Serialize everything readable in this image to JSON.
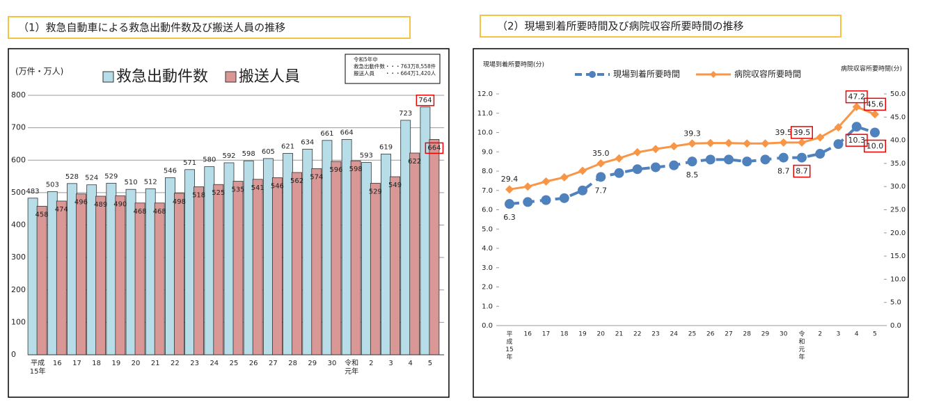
{
  "chart_data": [
    {
      "type": "bar",
      "title": "（1）救急自動車による救急出動件数及び搬送人員の推移",
      "y_label": "(万件・万人)",
      "annotation": [
        "令和5年中",
        "救急出動件数・・・763万8,558件",
        "搬送人員　　・・・664万1,420人"
      ],
      "categories": [
        "平成15年",
        "16",
        "17",
        "18",
        "19",
        "20",
        "21",
        "22",
        "23",
        "24",
        "25",
        "26",
        "27",
        "28",
        "29",
        "30",
        "令和元年",
        "2",
        "3",
        "4",
        "5"
      ],
      "series": [
        {
          "name": "救急出動件数",
          "color": "#b7dee8",
          "values": [
            483,
            503,
            528,
            524,
            529,
            510,
            512,
            546,
            571,
            580,
            592,
            598,
            605,
            621,
            634,
            661,
            664,
            593,
            619,
            723,
            764
          ]
        },
        {
          "name": "搬送人員",
          "color": "#d99795",
          "values": [
            458,
            474,
            496,
            489,
            490,
            468,
            468,
            498,
            518,
            525,
            535,
            541,
            546,
            562,
            574,
            596,
            598,
            529,
            549,
            622,
            664
          ]
        }
      ],
      "ylim": [
        0,
        800
      ],
      "yticks": [
        0,
        100,
        200,
        300,
        400,
        500,
        600,
        700,
        800
      ],
      "grid": true
    },
    {
      "type": "line",
      "title": "（2）現場到着所要時間及び病院収容所要時間の推移",
      "y_label": "現場到着所要時間(分)",
      "y2_label": "病院収容所要時間(分)",
      "categories": [
        "平成15年",
        "16",
        "17",
        "18",
        "19",
        "20",
        "21",
        "22",
        "23",
        "24",
        "25",
        "26",
        "27",
        "28",
        "29",
        "30",
        "令和元年",
        "2",
        "3",
        "4",
        "5"
      ],
      "series": [
        {
          "name": "現場到着所要時間",
          "color": "#4f81bd",
          "values": [
            6.3,
            6.4,
            6.5,
            6.6,
            7.0,
            7.7,
            7.9,
            8.1,
            8.2,
            8.3,
            8.5,
            8.6,
            8.6,
            8.5,
            8.6,
            8.7,
            8.7,
            8.9,
            9.4,
            10.3,
            10.0
          ],
          "value_labels": [
            "6.3",
            null,
            null,
            null,
            null,
            "7.7",
            null,
            null,
            null,
            null,
            "8.5",
            null,
            null,
            null,
            null,
            "8.7",
            "8.7",
            null,
            null,
            "10.3",
            "10.0"
          ]
        },
        {
          "name": "病院収容所要時間",
          "color": "#f79646",
          "axis": "y2",
          "values": [
            29.4,
            30.0,
            31.1,
            32.0,
            33.4,
            35.0,
            36.1,
            37.4,
            38.1,
            38.7,
            39.3,
            39.4,
            39.4,
            39.3,
            39.3,
            39.5,
            39.5,
            40.6,
            42.8,
            47.2,
            45.6
          ],
          "value_labels": [
            "29.4",
            null,
            null,
            null,
            null,
            "35.0",
            null,
            null,
            null,
            null,
            "39.3",
            null,
            null,
            null,
            null,
            "39.5",
            "39.5",
            null,
            null,
            "47.2",
            "45.6"
          ]
        }
      ],
      "ylim": [
        0,
        12
      ],
      "yticks": [
        {
          "value": 0,
          "label": "0.0"
        },
        {
          "value": 1,
          "label": "1.0"
        },
        {
          "value": 2,
          "label": "2.0"
        },
        {
          "value": 3,
          "label": "3.0"
        },
        {
          "value": 4,
          "label": "4.0"
        },
        {
          "value": 5,
          "label": "5.0"
        },
        {
          "value": 6,
          "label": "6.0"
        },
        {
          "value": 7,
          "label": "7.0"
        },
        {
          "value": 8,
          "label": "8.0"
        },
        {
          "value": 9,
          "label": "9.0"
        },
        {
          "value": 10,
          "label": "10.0"
        },
        {
          "value": 11,
          "label": "11.0"
        },
        {
          "value": 12,
          "label": "12.0"
        }
      ],
      "y2lim": [
        0,
        50
      ],
      "y2ticks": [
        {
          "value": 0,
          "label": "0.0"
        },
        {
          "value": 5,
          "label": "5.0"
        },
        {
          "value": 10,
          "label": "10.0"
        },
        {
          "value": 15,
          "label": "15.0"
        },
        {
          "value": 20,
          "label": "20.0"
        },
        {
          "value": 25,
          "label": "25.0"
        },
        {
          "value": 30,
          "label": "30.0"
        },
        {
          "value": 35,
          "label": "35.0"
        },
        {
          "value": 40,
          "label": "40.0"
        },
        {
          "value": 45,
          "label": "45.0"
        },
        {
          "value": 50,
          "label": "50.0"
        }
      ],
      "grid": false
    }
  ]
}
